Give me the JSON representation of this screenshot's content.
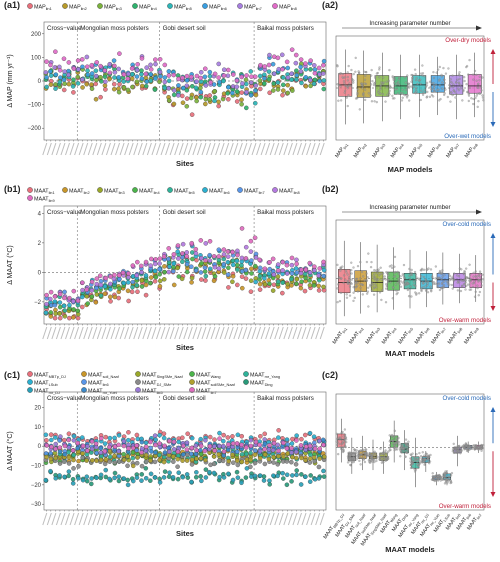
{
  "chart_data": [
    {
      "panel": "a1",
      "type": "scatter",
      "title": "(a1)",
      "ylabel": "Δ MAP (mm yr⁻¹)",
      "xlabel": "Sites",
      "ylim": [
        -250,
        250
      ],
      "yticks": [
        -200,
        -100,
        0,
        100,
        200
      ],
      "groups": [
        "Cross−value",
        "Mongolian moss polsters",
        "Gobi desert soil",
        "Baikal moss polsters"
      ],
      "series": [
        {
          "name": "MAP_lin1",
          "legend_main": "MAP",
          "legend_sub": "lin1",
          "color": "#e8707c"
        },
        {
          "name": "MAP_lin2",
          "legend_main": "MAP",
          "legend_sub": "lin2",
          "color": "#b79a2a"
        },
        {
          "name": "MAP_lin3",
          "legend_main": "MAP",
          "legend_sub": "lin3",
          "color": "#7bb23c"
        },
        {
          "name": "MAP_lin4",
          "legend_main": "MAP",
          "legend_sub": "lin4",
          "color": "#2fb26e"
        },
        {
          "name": "MAP_lin5",
          "legend_main": "MAP",
          "legend_sub": "lin5",
          "color": "#2cb6b8"
        },
        {
          "name": "MAP_lin6",
          "legend_main": "MAP",
          "legend_sub": "lin6",
          "color": "#3a9ee0"
        },
        {
          "name": "MAP_lin7",
          "legend_main": "MAP",
          "legend_sub": "lin7",
          "color": "#a77ee0"
        },
        {
          "name": "MAP_lin8",
          "legend_main": "MAP",
          "legend_sub": "lin8",
          "color": "#e06cc8"
        }
      ]
    },
    {
      "panel": "a2",
      "type": "box",
      "title": "(a2)",
      "xlabel": "MAP models",
      "categories": [
        "MAP_lin1",
        "MAP_lin2",
        "MAP_lin3",
        "MAP_lin4",
        "MAP_lin5",
        "MAP_lin6",
        "MAP_lin7",
        "MAP_lin8"
      ],
      "tick_main": "MAP",
      "tick_subs": [
        "lin1",
        "lin2",
        "lin3",
        "lin4",
        "lin5",
        "lin6",
        "lin7",
        "lin8"
      ],
      "colors": [
        "#e8707c",
        "#b79a2a",
        "#7bb23c",
        "#2fb26e",
        "#2cb6b8",
        "#3a9ee0",
        "#a77ee0",
        "#e06cc8"
      ],
      "boxes": [
        {
          "q1": -40,
          "median": 15,
          "q3": 70,
          "lo": -175,
          "hi": 185
        },
        {
          "q1": -45,
          "median": 5,
          "q3": 65,
          "lo": -170,
          "hi": 180
        },
        {
          "q1": -40,
          "median": 10,
          "q3": 60,
          "lo": -160,
          "hi": 170
        },
        {
          "q1": -30,
          "median": 10,
          "q3": 55,
          "lo": -150,
          "hi": 160
        },
        {
          "q1": -25,
          "median": 15,
          "q3": 60,
          "lo": -140,
          "hi": 160
        },
        {
          "q1": -20,
          "median": 15,
          "q3": 60,
          "lo": -130,
          "hi": 150
        },
        {
          "q1": -30,
          "median": 10,
          "q3": 60,
          "lo": -150,
          "hi": 160
        },
        {
          "q1": -25,
          "median": 10,
          "q3": 65,
          "lo": -140,
          "hi": 170
        }
      ],
      "arrow_label": "Increasing parameter number",
      "top_label": "Over-dry models",
      "bottom_label": "Over-wet models",
      "top_color": "#c0203a",
      "bottom_color": "#2a6ab8"
    },
    {
      "panel": "b1",
      "type": "scatter",
      "title": "(b1)",
      "ylabel": "Δ MAAT (°C)",
      "xlabel": "Sites",
      "ylim": [
        -3.5,
        4.5
      ],
      "yticks": [
        -2,
        0,
        2,
        4
      ],
      "groups": [
        "Cross−value",
        "Mongolian moss polsters",
        "Gobi desert soil",
        "Baikal moss polsters"
      ],
      "series": [
        {
          "name": "MAAT_lin1",
          "legend_main": "MAAT",
          "legend_sub": "lin1",
          "color": "#e8707c"
        },
        {
          "name": "MAAT_lin2",
          "legend_main": "MAAT",
          "legend_sub": "lin2",
          "color": "#c8962a"
        },
        {
          "name": "MAAT_lin3",
          "legend_main": "MAAT",
          "legend_sub": "lin3",
          "color": "#9aa82a"
        },
        {
          "name": "MAAT_lin4",
          "legend_main": "MAAT",
          "legend_sub": "lin4",
          "color": "#4bb34a"
        },
        {
          "name": "MAAT_lin5",
          "legend_main": "MAAT",
          "legend_sub": "lin5",
          "color": "#2fb39a"
        },
        {
          "name": "MAAT_lin6",
          "legend_main": "MAAT",
          "legend_sub": "lin6",
          "color": "#2cb0d0"
        },
        {
          "name": "MAAT_lin7",
          "legend_main": "MAAT",
          "legend_sub": "lin7",
          "color": "#5a96e8"
        },
        {
          "name": "MAAT_lin8",
          "legend_main": "MAAT",
          "legend_sub": "lin8",
          "color": "#b47ae0"
        },
        {
          "name": "MAAT_lin9",
          "legend_main": "MAAT",
          "legend_sub": "lin9",
          "color": "#e06cc0"
        }
      ]
    },
    {
      "panel": "b2",
      "type": "box",
      "title": "(b2)",
      "xlabel": "MAAT models",
      "categories": [
        "MAAT_lin1",
        "MAAT_lin2",
        "MAAT_lin3",
        "MAAT_lin4",
        "MAAT_lin5",
        "MAAT_lin6",
        "MAAT_lin7",
        "MAAT_lin8",
        "MAAT_lin9"
      ],
      "tick_main": "MAAT",
      "tick_subs": [
        "lin1",
        "lin2",
        "lin3",
        "lin4",
        "lin5",
        "lin6",
        "lin7",
        "lin8",
        "lin9"
      ],
      "colors": [
        "#e8707c",
        "#c8962a",
        "#9aa82a",
        "#4bb34a",
        "#2fb39a",
        "#2cb0d0",
        "#5a96e8",
        "#b47ae0",
        "#e06cc0"
      ],
      "boxes": [
        {
          "q1": -1.1,
          "median": -0.3,
          "q3": 0.7,
          "lo": -2.9,
          "hi": 2.9
        },
        {
          "q1": -1.0,
          "median": -0.2,
          "q3": 0.6,
          "lo": -2.7,
          "hi": 2.8
        },
        {
          "q1": -1.0,
          "median": -0.3,
          "q3": 0.5,
          "lo": -2.6,
          "hi": 2.6
        },
        {
          "q1": -0.9,
          "median": -0.2,
          "q3": 0.5,
          "lo": -2.4,
          "hi": 2.4
        },
        {
          "q1": -0.8,
          "median": -0.1,
          "q3": 0.4,
          "lo": -2.3,
          "hi": 2.2
        },
        {
          "q1": -0.8,
          "median": -0.2,
          "q3": 0.4,
          "lo": -2.2,
          "hi": 2.1
        },
        {
          "q1": -0.7,
          "median": -0.1,
          "q3": 0.4,
          "lo": -2.0,
          "hi": 2.0
        },
        {
          "q1": -0.7,
          "median": -0.1,
          "q3": 0.4,
          "lo": -1.9,
          "hi": 1.9
        },
        {
          "q1": -0.7,
          "median": -0.1,
          "q3": 0.4,
          "lo": -1.8,
          "hi": 1.8
        }
      ],
      "arrow_label": "Increasing parameter number",
      "top_label": "Over-cold models",
      "bottom_label": "Over-warm models",
      "top_color": "#2a6ab8",
      "bottom_color": "#c0203a"
    },
    {
      "panel": "c1",
      "type": "scatter",
      "title": "(c1)",
      "ylabel": "Δ MAAT (°C)",
      "xlabel": "Sites",
      "ylim": [
        -33,
        28
      ],
      "yticks": [
        -30,
        -20,
        -10,
        0,
        10,
        20
      ],
      "groups": [
        "Cross−value",
        "Mongolian moss polsters",
        "Gobi desert soil",
        "Baikal moss polsters"
      ],
      "series": [
        {
          "name": "MAAT_MBTp_DJ",
          "legend_main": "MAAT",
          "legend_sub": "MBTp_DJ",
          "color": "#e8707c"
        },
        {
          "name": "MAAT_soil_Naaf",
          "legend_main": "MAAT",
          "legend_sub": "soil_Naaf",
          "color": "#c8962a"
        },
        {
          "name": "MAAT_SingSMe_Naaf",
          "legend_main": "MAAT",
          "legend_sub": "SingSMe_Naaf",
          "color": "#9aa82a"
        },
        {
          "name": "MAAT_Wang",
          "legend_main": "MAAT",
          "legend_sub": "Wang",
          "color": "#4bb34a"
        },
        {
          "name": "MAAT_mr_Yang",
          "legend_main": "MAAT",
          "legend_sub": "mr_Yang",
          "color": "#2fb39a"
        },
        {
          "name": "MAAT_LSub",
          "legend_main": "MAAT",
          "legend_sub": "LSub",
          "color": "#2cb0d0"
        },
        {
          "name": "MAAT_lin6",
          "legend_main": "MAAT",
          "legend_sub": "lin6",
          "color": "#5a96e8"
        },
        {
          "name": "MAAT_DJ_SMe",
          "legend_main": "MAAT",
          "legend_sub": "DJ_SMe",
          "color": "#8a8a8a"
        },
        {
          "name": "MAAT_soilSMe_Naaf",
          "legend_main": "MAAT",
          "legend_sub": "soilSMe_Naaf",
          "color": "#b0a030"
        },
        {
          "name": "MAAT_Ding",
          "legend_main": "MAAT",
          "legend_sub": "Ding",
          "color": "#2a9a7a"
        },
        {
          "name": "MAAT_mr_DJ",
          "legend_main": "MAAT",
          "legend_sub": "mr_DJ",
          "color": "#2aa0b8"
        },
        {
          "name": "MAAT_mr_Yoet",
          "legend_main": "MAAT",
          "legend_sub": "mr_Yoet",
          "color": "#3a8acc"
        },
        {
          "name": "MAAT_lin5",
          "legend_main": "MAAT",
          "legend_sub": "lin5",
          "color": "#9a7ad8"
        },
        {
          "name": "MAAT_lin7",
          "legend_main": "MAAT",
          "legend_sub": "lin7",
          "color": "#e06cc0"
        }
      ]
    },
    {
      "panel": "c2",
      "type": "box",
      "title": "(c2)",
      "xlabel": "MAAT models",
      "categories": [
        "MAAT_MBTp_DJ",
        "MAAT_DJ_SMe",
        "MAAT_soil_Naaf",
        "MAAT_soilSMe_Naaf",
        "MAAT_SingSMe_Naaf",
        "MAAT_Wang",
        "MAAT_Ding",
        "MAAT_mr_Yang",
        "MAAT_mr_DJ",
        "MAAT_mr_Yoet",
        "MAAT_LSub",
        "MAAT_lin5",
        "MAAT_lin6",
        "MAAT_lin7"
      ],
      "tick_main": "MAAT",
      "tick_subs": [
        "MBTp_DJ",
        "DJ_SMe",
        "soil_Naaf",
        "soilSMe_Naaf",
        "SingSMe_Naaf",
        "Wang",
        "Ding",
        "mr_Yang",
        "mr_DJ",
        "mr_Yoet",
        "LSub",
        "lin5",
        "lin6",
        "lin7"
      ],
      "colors": [
        "#e8707c",
        "#8a8a8a",
        "#c8962a",
        "#b0a030",
        "#9aa82a",
        "#4bb34a",
        "#2a9a7a",
        "#2fb39a",
        "#2aa0b8",
        "#3a8acc",
        "#2cb0d0",
        "#9a7ad8",
        "#5a96e8",
        "#e06cc0"
      ],
      "boxes": [
        {
          "q1": 0,
          "median": 4,
          "q3": 7,
          "lo": -8,
          "hi": 15
        },
        {
          "q1": -7,
          "median": -5,
          "q3": -3,
          "lo": -14,
          "hi": 5
        },
        {
          "q1": -6,
          "median": -4,
          "q3": -2,
          "lo": -12,
          "hi": 6
        },
        {
          "q1": -6,
          "median": -5,
          "q3": -3,
          "lo": -12,
          "hi": 4
        },
        {
          "q1": -7,
          "median": -5,
          "q3": -3,
          "lo": -14,
          "hi": 3
        },
        {
          "q1": 0,
          "median": 3,
          "q3": 6,
          "lo": -8,
          "hi": 14
        },
        {
          "q1": -3,
          "median": -1,
          "q3": 2,
          "lo": -12,
          "hi": 9
        },
        {
          "q1": -11,
          "median": -8,
          "q3": -5,
          "lo": -21,
          "hi": 5
        },
        {
          "q1": -8,
          "median": -6,
          "q3": -5,
          "lo": -13,
          "hi": -2
        },
        {
          "q1": -17,
          "median": -16,
          "q3": -15,
          "lo": -20,
          "hi": -13
        },
        {
          "q1": -17,
          "median": -16,
          "q3": -14,
          "lo": -20,
          "hi": -12
        },
        {
          "q1": -3,
          "median": -1,
          "q3": 0,
          "lo": -10,
          "hi": 6
        },
        {
          "q1": -1,
          "median": 0,
          "q3": 1,
          "lo": -3,
          "hi": 3
        },
        {
          "q1": -1,
          "median": 0,
          "q3": 1,
          "lo": -3,
          "hi": 3
        }
      ],
      "top_label": "Over-cold models",
      "bottom_label": "Over-warm models",
      "top_color": "#2a6ab8",
      "bottom_color": "#c0203a"
    }
  ]
}
